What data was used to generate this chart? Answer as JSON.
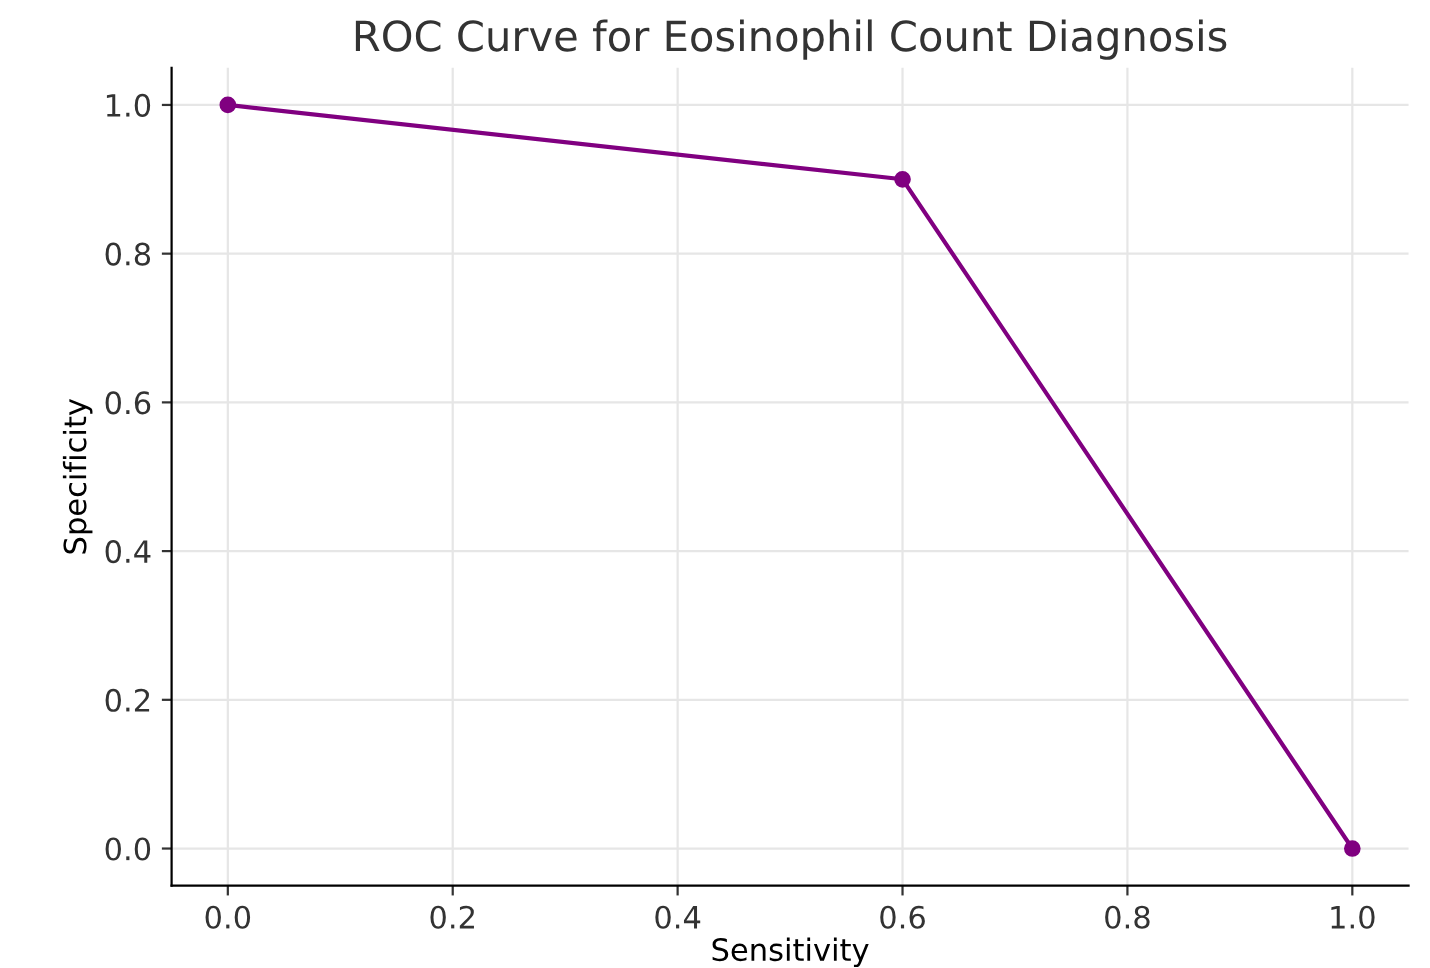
{
  "chart_data": {
    "type": "line",
    "title": "ROC Curve for Eosinophil Count Diagnosis",
    "xlabel": "Sensitivity",
    "ylabel": "Specificity",
    "x": [
      0.0,
      0.6,
      1.0
    ],
    "series": [
      {
        "color": "#800080",
        "values": [
          1.0,
          0.9,
          0.0
        ]
      }
    ],
    "xlim": [
      -0.05,
      1.05
    ],
    "ylim": [
      -0.05,
      1.05
    ],
    "xticks": [
      {
        "value": 0,
        "label": "0.0"
      },
      0.2,
      0.4,
      0.6,
      0.8,
      {
        "value": 1,
        "label": "1.0"
      }
    ],
    "yticks": [
      {
        "value": 0,
        "label": "0.0"
      },
      0.2,
      0.4,
      0.6,
      0.8,
      {
        "value": 1,
        "label": "1.0"
      }
    ],
    "grid": true,
    "marker": "circle",
    "line_style": "solid"
  }
}
